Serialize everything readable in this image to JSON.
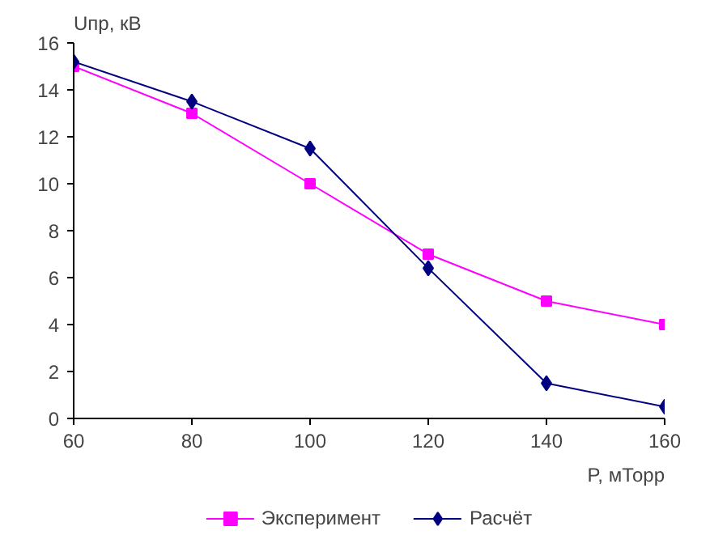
{
  "chart_data": {
    "type": "line",
    "xlabel": "P, мТорр",
    "ylabel": "Uпр, кВ",
    "x": [
      60,
      80,
      100,
      120,
      140,
      160
    ],
    "series": [
      {
        "name": "Эксперимент",
        "color": "#ff00ff",
        "marker": "square",
        "values": [
          15,
          13,
          10,
          7,
          5,
          4
        ]
      },
      {
        "name": "Расчёт",
        "color": "#000080",
        "marker": "diamond",
        "values": [
          15.2,
          13.5,
          11.5,
          6.4,
          1.5,
          0.5
        ]
      }
    ],
    "xlim": [
      60,
      160
    ],
    "xticks": [
      60,
      80,
      100,
      120,
      140,
      160
    ],
    "ylim": [
      0,
      16
    ],
    "yticks": [
      0,
      2,
      4,
      6,
      8,
      10,
      12,
      14,
      16
    ],
    "grid": false,
    "legend": "bottom",
    "line_style": "solid"
  }
}
